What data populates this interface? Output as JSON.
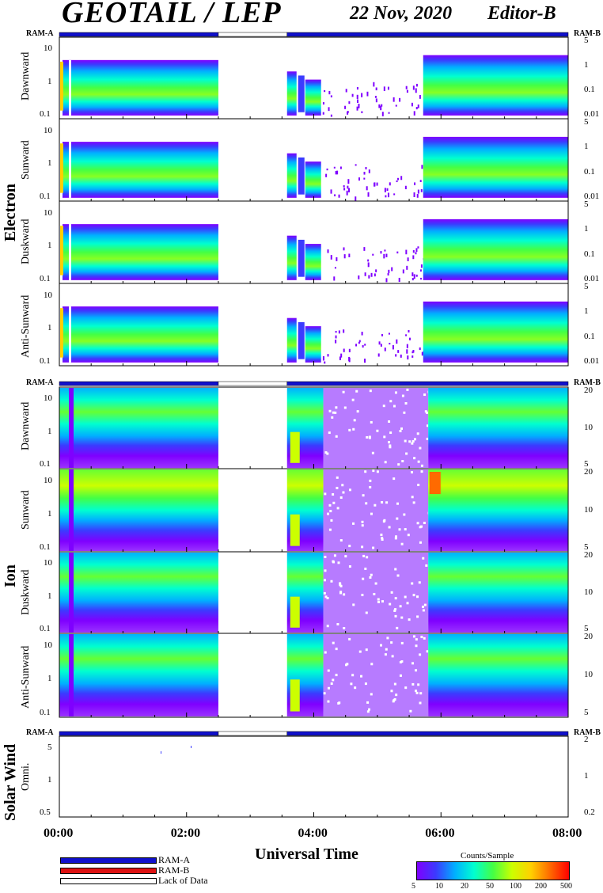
{
  "header": {
    "title": "GEOTAIL / LEP",
    "date": "22 Nov, 2020",
    "editor": "Editor-B"
  },
  "ram_labels": {
    "left": "RAM-A",
    "right": "RAM-B"
  },
  "colors": {
    "ram_a": "#1111cc",
    "ram_b": "#dd1111",
    "lack": "#ffffff",
    "colorscale": [
      "#7f00ff",
      "#3b3bff",
      "#00b0ff",
      "#00ffd0",
      "#44ff44",
      "#ccff00",
      "#ffd000",
      "#ff6a00",
      "#ff0000"
    ]
  },
  "groups": {
    "electron": "Electron",
    "ion": "Ion",
    "solar_wind": "Solar Wind"
  },
  "x_axis": {
    "label": "Universal Time",
    "tick_labels": [
      "00:00",
      "02:00",
      "04:00",
      "06:00",
      "08:00"
    ],
    "range_hours": [
      0,
      8
    ]
  },
  "legend": {
    "ram_a": "RAM-A",
    "ram_b": "RAM-B",
    "lack": "Lack of Data"
  },
  "colorbar": {
    "title": "Counts/Sample",
    "ticks": [
      "5",
      "10",
      "20",
      "50",
      "100",
      "200",
      "500"
    ]
  },
  "chart_data": {
    "type": "heatmap",
    "x_range_ut_hours": [
      0,
      8
    ],
    "ram_coverage": [
      {
        "start": 0.0,
        "end": 2.5,
        "mode": "RAM-A"
      },
      {
        "start": 2.5,
        "end": 3.58,
        "mode": "Lack of Data"
      },
      {
        "start": 3.58,
        "end": 8.0,
        "mode": "RAM-A"
      }
    ],
    "data_gap_hours": [
      2.5,
      3.58
    ],
    "colorbar_range": [
      5,
      500
    ],
    "panels": [
      {
        "group": "Electron",
        "name": "Dawnward",
        "left_ticks": [
          "10",
          "1",
          "0.1"
        ],
        "right_ticks": [
          "5",
          "1",
          "0.1",
          "0.01"
        ]
      },
      {
        "group": "Electron",
        "name": "Sunward",
        "left_ticks": [
          "10",
          "1",
          "0.1"
        ],
        "right_ticks": [
          "5",
          "1",
          "0.1",
          "0.01"
        ]
      },
      {
        "group": "Electron",
        "name": "Duskward",
        "left_ticks": [
          "10",
          "1",
          "0.1"
        ],
        "right_ticks": [
          "5",
          "1",
          "0.1",
          "0.01"
        ]
      },
      {
        "group": "Electron",
        "name": "Anti-Sunward",
        "left_ticks": [
          "10",
          "1",
          "0.1"
        ],
        "right_ticks": [
          "5",
          "1",
          "0.1",
          "0.01"
        ]
      },
      {
        "group": "Ion",
        "name": "Dawnward",
        "left_ticks": [
          "10",
          "1",
          "0.1"
        ],
        "right_ticks": [
          "20",
          "10",
          "5"
        ]
      },
      {
        "group": "Ion",
        "name": "Sunward",
        "left_ticks": [
          "10",
          "1",
          "0.1"
        ],
        "right_ticks": [
          "20",
          "10",
          "5"
        ]
      },
      {
        "group": "Ion",
        "name": "Duskward",
        "left_ticks": [
          "10",
          "1",
          "0.1"
        ],
        "right_ticks": [
          "20",
          "10",
          "5"
        ]
      },
      {
        "group": "Ion",
        "name": "Anti-Sunward",
        "left_ticks": [
          "10",
          "1",
          "0.1"
        ],
        "right_ticks": [
          "20",
          "10",
          "5"
        ]
      },
      {
        "group": "Solar Wind",
        "name": "Omni.",
        "left_ticks": [
          "5",
          "1",
          "0.5"
        ],
        "right_ticks": [
          "2",
          "1",
          "0.2"
        ]
      }
    ]
  }
}
